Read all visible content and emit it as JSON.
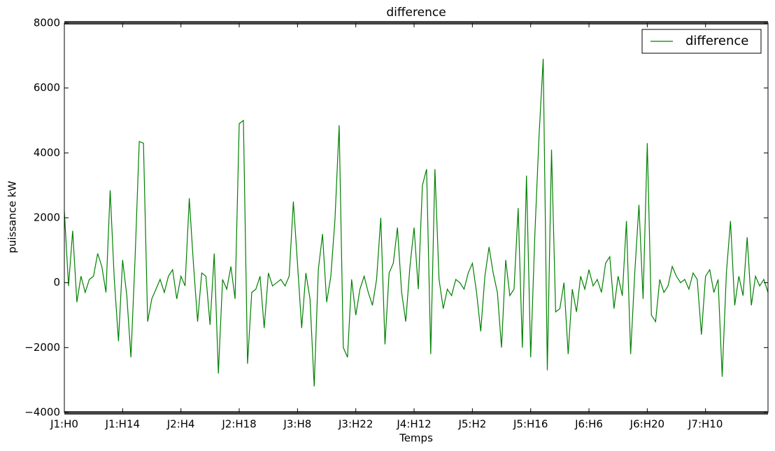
{
  "chart_data": {
    "type": "line",
    "title": "difference",
    "xlabel": "Temps",
    "ylabel": "puissance kW",
    "legend": "upper right",
    "xlim": [
      0,
      169
    ],
    "ylim": [
      -4000,
      8000
    ],
    "yticks": [
      {
        "value": -4000,
        "label": "−4000"
      },
      {
        "value": -2000,
        "label": "−2000"
      },
      0,
      2000,
      4000,
      6000,
      8000
    ],
    "xticks": [
      {
        "value": 0,
        "label": "J1:H0"
      },
      {
        "value": 14,
        "label": "J1:H14"
      },
      {
        "value": 28,
        "label": "J2:H4"
      },
      {
        "value": 42,
        "label": "J2:H18"
      },
      {
        "value": 56,
        "label": "J3:H8"
      },
      {
        "value": 70,
        "label": "J3:H22"
      },
      {
        "value": 84,
        "label": "J4:H12"
      },
      {
        "value": 98,
        "label": "J5:H2"
      },
      {
        "value": 112,
        "label": "J5:H16"
      },
      {
        "value": 126,
        "label": "J6:H6"
      },
      {
        "value": 140,
        "label": "J6:H20"
      },
      {
        "value": 154,
        "label": "J7:H10"
      }
    ],
    "x": [
      0,
      1,
      2,
      3,
      4,
      5,
      6,
      7,
      8,
      9,
      10,
      11,
      12,
      13,
      14,
      15,
      16,
      17,
      18,
      19,
      20,
      21,
      22,
      23,
      24,
      25,
      26,
      27,
      28,
      29,
      30,
      31,
      32,
      33,
      34,
      35,
      36,
      37,
      38,
      39,
      40,
      41,
      42,
      43,
      44,
      45,
      46,
      47,
      48,
      49,
      50,
      51,
      52,
      53,
      54,
      55,
      56,
      57,
      58,
      59,
      60,
      61,
      62,
      63,
      64,
      65,
      66,
      67,
      68,
      69,
      70,
      71,
      72,
      73,
      74,
      75,
      76,
      77,
      78,
      79,
      80,
      81,
      82,
      83,
      84,
      85,
      86,
      87,
      88,
      89,
      90,
      91,
      92,
      93,
      94,
      95,
      96,
      97,
      98,
      99,
      100,
      101,
      102,
      103,
      104,
      105,
      106,
      107,
      108,
      109,
      110,
      111,
      112,
      113,
      114,
      115,
      116,
      117,
      118,
      119,
      120,
      121,
      122,
      123,
      124,
      125,
      126,
      127,
      128,
      129,
      130,
      131,
      132,
      133,
      134,
      135,
      136,
      137,
      138,
      139,
      140,
      141,
      142,
      143,
      144,
      145,
      146,
      147,
      148,
      149,
      150,
      151,
      152,
      153,
      154,
      155,
      156,
      157,
      158,
      159,
      160,
      161,
      162,
      163,
      164,
      165,
      166,
      167,
      168,
      169
    ],
    "series": [
      {
        "name": "difference",
        "color": "#008000",
        "values": [
          2200,
          -100,
          1600,
          -600,
          200,
          -300,
          100,
          200,
          900,
          500,
          -300,
          2850,
          100,
          -1800,
          700,
          -400,
          -2300,
          800,
          4350,
          4300,
          -1200,
          -500,
          -200,
          100,
          -300,
          200,
          400,
          -500,
          200,
          -100,
          2600,
          600,
          -1200,
          300,
          200,
          -1300,
          900,
          -2800,
          100,
          -200,
          500,
          -500,
          4900,
          5000,
          -2500,
          -300,
          -200,
          200,
          -1400,
          300,
          -100,
          0,
          100,
          -100,
          200,
          2500,
          600,
          -1400,
          300,
          -500,
          -3200,
          400,
          1500,
          -600,
          200,
          1950,
          4850,
          -2000,
          -2300,
          100,
          -1000,
          -200,
          200,
          -300,
          -700,
          100,
          2000,
          -1900,
          300,
          600,
          1700,
          -300,
          -1200,
          500,
          1700,
          -200,
          3000,
          3500,
          -2200,
          3500,
          100,
          -800,
          -200,
          -400,
          100,
          0,
          -200,
          300,
          600,
          -300,
          -1500,
          200,
          1100,
          300,
          -300,
          -2000,
          700,
          -400,
          -200,
          2300,
          -2000,
          3300,
          -2300,
          1500,
          4500,
          6900,
          -2700,
          4100,
          -900,
          -800,
          0,
          -2200,
          -200,
          -900,
          200,
          -200,
          400,
          -100,
          100,
          -300,
          600,
          800,
          -800,
          200,
          -400,
          1900,
          -2200,
          300,
          2400,
          -500,
          4300,
          -1000,
          -1200,
          100,
          -300,
          -100,
          500,
          200,
          0,
          100,
          -200,
          300,
          100,
          -1600,
          200,
          400,
          -300,
          100,
          -2900,
          300,
          1900,
          -700,
          200,
          -400,
          1400,
          -700,
          200,
          -100,
          100,
          -300
        ]
      }
    ]
  }
}
